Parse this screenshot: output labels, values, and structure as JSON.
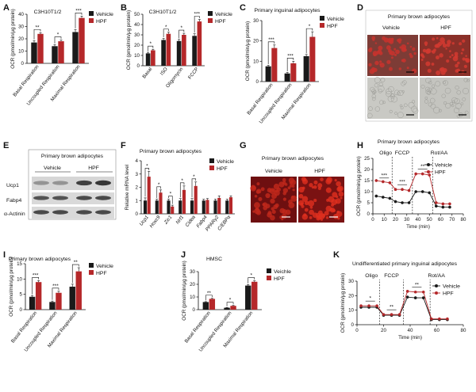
{
  "colors": {
    "vehicle": "#1a1a1a",
    "hpf": "#b5282a"
  },
  "legend": {
    "vehicle": "Vehicle",
    "hpf": "HPF",
    "vehicle_alt": "Veichle"
  },
  "panels": {
    "A": {
      "label": "A",
      "title": "C3H10T1/2"
    },
    "B": {
      "label": "B",
      "title": "C3H10T1/2"
    },
    "C": {
      "label": "C",
      "title": "Primary inguinal adipocytes"
    },
    "D": {
      "label": "D",
      "title": "Primary brown adipocytes",
      "col1": "Vehicle",
      "col2": "HPF"
    },
    "E": {
      "label": "E",
      "title": "Primary brown adipocytes",
      "col1": "Vehicle",
      "col2": "HPF",
      "rows": [
        "Ucp1",
        "Fabp4",
        "α-Actinin"
      ]
    },
    "F": {
      "label": "F",
      "title": "Primary brown adipocytes"
    },
    "G": {
      "label": "G",
      "title": "Primary brown adipocytes",
      "col1": "Vehicle",
      "col2": "HPF"
    },
    "H": {
      "label": "H",
      "title": "Primary brown adipocytes",
      "markers": [
        "Oligo",
        "FCCP",
        "Rot/AA"
      ]
    },
    "I": {
      "label": "I",
      "title": "Primary brown adipocytes"
    },
    "J": {
      "label": "J",
      "title": "HMSC"
    },
    "K": {
      "label": "K",
      "title": "Undifferentiated primary inguinal adipocytes",
      "markers": [
        "Oligo",
        "FCCP",
        "Rot/AA"
      ]
    }
  },
  "chart_data": [
    {
      "id": "A",
      "type": "bar",
      "ylabel": "OCR (pmol/min/μg protein)",
      "ylim": [
        0,
        40
      ],
      "yticks": [
        0,
        10,
        20,
        30,
        40
      ],
      "categories": [
        "Basal Respiration",
        "Uncoupled Respiration",
        "Maximal Respiration"
      ],
      "series": [
        {
          "name": "Vehicle",
          "values": [
            17,
            14,
            25.5
          ],
          "err": [
            1.5,
            1.2,
            2
          ]
        },
        {
          "name": "HPF",
          "values": [
            24,
            18,
            37
          ],
          "err": [
            1,
            1,
            1.5
          ]
        }
      ],
      "sig": [
        "**",
        "*",
        "***"
      ]
    },
    {
      "id": "B",
      "type": "bar",
      "ylabel": "OCR (pmol/min/μg protein)",
      "ylim": [
        0,
        50
      ],
      "yticks": [
        0,
        10,
        20,
        30,
        40,
        50
      ],
      "categories": [
        "Basal",
        "ISO",
        "Oligomycin",
        "FCCP"
      ],
      "series": [
        {
          "name": "Vehicle",
          "values": [
            12,
            25,
            24,
            29
          ],
          "err": [
            1,
            1.5,
            1.5,
            2
          ]
        },
        {
          "name": "HPF",
          "values": [
            15,
            31,
            30,
            43
          ],
          "err": [
            1,
            1.5,
            1.5,
            2
          ]
        }
      ],
      "sig": [
        "*",
        "*",
        "*",
        "***"
      ]
    },
    {
      "id": "C",
      "type": "bar",
      "ylabel": "OCR (pmol/min/μg protein)",
      "ylim": [
        0,
        30
      ],
      "yticks": [
        0,
        10,
        20,
        30
      ],
      "categories": [
        "Basal Respiration",
        "Uncoupled Respiration",
        "Maximal Respiration"
      ],
      "series": [
        {
          "name": "Vehicle",
          "values": [
            7.5,
            4,
            12.5
          ],
          "err": [
            0.5,
            0.5,
            0.8
          ]
        },
        {
          "name": "HPF",
          "values": [
            16.5,
            9,
            22
          ],
          "err": [
            1.5,
            1,
            2.5
          ]
        }
      ],
      "sig": [
        "***",
        "***",
        "*"
      ]
    },
    {
      "id": "F",
      "type": "bar",
      "ylabel": "Relative mRNA level",
      "ylim": [
        0,
        4
      ],
      "yticks": [
        0,
        1,
        2,
        3,
        4
      ],
      "categories": [
        "Ucp1",
        "Hoxc9",
        "Zic1",
        "Nrf1",
        "Cidea",
        "Fabp4",
        "PPARγ2",
        "C/EBPα"
      ],
      "series": [
        {
          "name": "Vehicle",
          "values": [
            1,
            1,
            1,
            1,
            1,
            1,
            1,
            1
          ],
          "err": [
            0.2,
            0.1,
            0.1,
            0.15,
            0.15,
            0.1,
            0.1,
            0.1
          ]
        },
        {
          "name": "HPF",
          "values": [
            2.8,
            1.6,
            0.55,
            1.8,
            2.1,
            1.05,
            1.2,
            1.25
          ],
          "err": [
            0.4,
            0.2,
            0.1,
            0.3,
            0.3,
            0.1,
            0.15,
            0.1
          ]
        }
      ],
      "sig": [
        "*",
        "*",
        "*",
        "*",
        "*",
        "",
        "",
        ""
      ]
    },
    {
      "id": "H",
      "type": "line",
      "xlabel": "Time  (min)",
      "ylabel": "OCR (pmol/min/μg protein)",
      "xlim": [
        0,
        80
      ],
      "xticks": [
        0,
        10,
        20,
        30,
        40,
        50,
        60,
        70,
        80
      ],
      "ylim": [
        0,
        25
      ],
      "yticks": [
        0,
        5,
        10,
        15,
        20,
        25
      ],
      "x": [
        3,
        9,
        15,
        20,
        26,
        32,
        38,
        44,
        50,
        56,
        62,
        68
      ],
      "series": [
        {
          "name": "Vehicle",
          "values": [
            8,
            7.5,
            7,
            5.5,
            5,
            5,
            10,
            10,
            9.5,
            3.5,
            3,
            3
          ]
        },
        {
          "name": "HPF",
          "values": [
            15,
            14.5,
            14,
            11,
            11,
            10.5,
            18,
            18,
            17.5,
            5,
            4.5,
            4.5
          ]
        }
      ],
      "vlines": [
        17,
        35,
        53
      ],
      "sig": [
        {
          "x": 10,
          "text": "***"
        },
        {
          "x": 26,
          "text": "***"
        },
        {
          "x": 44,
          "text": "**"
        }
      ]
    },
    {
      "id": "I",
      "type": "bar",
      "ylabel": "OCR (pmol/min/μg protein)",
      "ylim": [
        0,
        15
      ],
      "yticks": [
        0,
        5,
        10,
        15
      ],
      "categories": [
        "Basal Respiration",
        "Uncoupled Respiration",
        "Maximal Respiration"
      ],
      "series": [
        {
          "name": "Vehicle",
          "values": [
            4.2,
            2.5,
            7.5
          ],
          "err": [
            0.4,
            0.3,
            0.8
          ]
        },
        {
          "name": "HPF",
          "values": [
            9,
            5.5,
            12.5
          ],
          "err": [
            0.5,
            0.5,
            1.2
          ]
        }
      ],
      "sig": [
        "***",
        "***",
        "**"
      ]
    },
    {
      "id": "J",
      "type": "bar",
      "ylabel": "OCR (pmol/min/μg protein)",
      "ylim": [
        0,
        30
      ],
      "yticks": [
        0,
        10,
        20,
        30
      ],
      "categories": [
        "Basal Respiration",
        "Uncoupled Respiration",
        "Maximal Respiration"
      ],
      "series": [
        {
          "name": "Veichle",
          "values": [
            6,
            1.5,
            19
          ],
          "err": [
            0.3,
            0.2,
            0.8
          ]
        },
        {
          "name": "HPF",
          "values": [
            8.5,
            3,
            22
          ],
          "err": [
            0.4,
            0.3,
            0.8
          ]
        }
      ],
      "sig": [
        "**",
        "*",
        "*"
      ]
    },
    {
      "id": "K",
      "type": "line",
      "xlabel": "Time  (min)",
      "ylabel": "OCR (pmol/min/μg protein)",
      "xlim": [
        0,
        80
      ],
      "xticks": [
        0,
        20,
        40,
        60,
        80
      ],
      "ylim": [
        0,
        30
      ],
      "yticks": [
        0,
        10,
        20,
        30
      ],
      "x": [
        3,
        9,
        15,
        20,
        26,
        32,
        38,
        44,
        50,
        56,
        62,
        68
      ],
      "series": [
        {
          "name": "Vehicle",
          "values": [
            12,
            12,
            12,
            6.5,
            6.5,
            6.5,
            19,
            18.5,
            18.5,
            3.5,
            3.5,
            3.5
          ]
        },
        {
          "name": "HPF",
          "values": [
            13,
            13,
            13,
            7,
            7,
            7,
            23,
            22.5,
            22.5,
            4,
            4,
            4
          ]
        }
      ],
      "vlines": [
        17,
        35,
        55
      ],
      "sig": [
        {
          "x": 10,
          "text": "*"
        },
        {
          "x": 26,
          "text": "**"
        },
        {
          "x": 45,
          "text": "**"
        }
      ]
    }
  ]
}
